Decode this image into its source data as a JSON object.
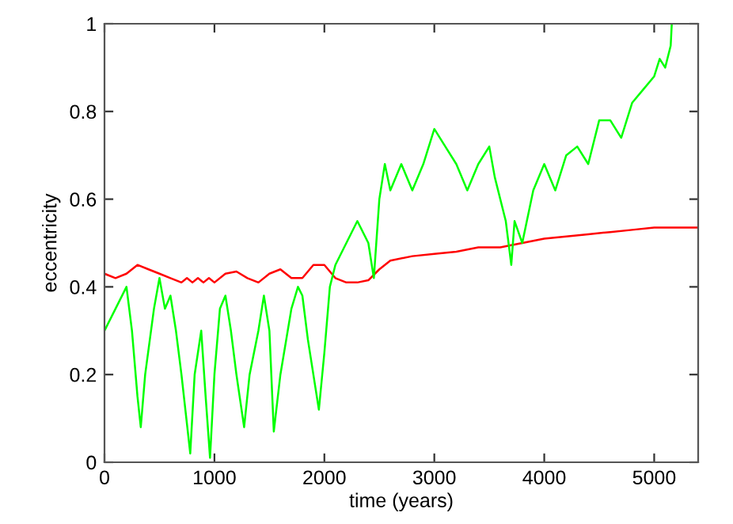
{
  "chart_data": {
    "type": "line",
    "xlabel": "time (years)",
    "ylabel": "eccentricity",
    "xlim": [
      0,
      5400
    ],
    "xticks": [
      0,
      1000,
      2000,
      3000,
      4000,
      5000
    ],
    "ylim": [
      0,
      1
    ],
    "yticks": [
      0,
      0.2,
      0.4,
      0.6,
      0.8,
      1
    ],
    "grid": false,
    "legend": false,
    "series": [
      {
        "color": "#ff0000",
        "x": [
          0,
          100,
          200,
          300,
          400,
          500,
          600,
          700,
          750,
          800,
          850,
          900,
          950,
          1000,
          1100,
          1200,
          1300,
          1400,
          1500,
          1600,
          1700,
          1800,
          1900,
          2000,
          2100,
          2200,
          2300,
          2400,
          2500,
          2600,
          2800,
          3000,
          3200,
          3400,
          3600,
          3800,
          4000,
          4200,
          4400,
          4600,
          4800,
          5000,
          5400
        ],
        "values": [
          0.43,
          0.42,
          0.43,
          0.45,
          0.44,
          0.43,
          0.42,
          0.41,
          0.42,
          0.41,
          0.42,
          0.41,
          0.42,
          0.41,
          0.43,
          0.435,
          0.42,
          0.41,
          0.43,
          0.44,
          0.42,
          0.42,
          0.45,
          0.45,
          0.42,
          0.41,
          0.41,
          0.415,
          0.44,
          0.46,
          0.47,
          0.475,
          0.48,
          0.49,
          0.49,
          0.5,
          0.51,
          0.515,
          0.52,
          0.525,
          0.53,
          0.535,
          0.535
        ]
      },
      {
        "color": "#00ff00",
        "x": [
          0,
          100,
          200,
          250,
          300,
          330,
          370,
          450,
          500,
          550,
          600,
          650,
          700,
          780,
          820,
          880,
          920,
          960,
          1000,
          1050,
          1100,
          1150,
          1200,
          1270,
          1320,
          1400,
          1450,
          1500,
          1540,
          1600,
          1700,
          1760,
          1800,
          1850,
          1950,
          2000,
          2050,
          2100,
          2200,
          2300,
          2400,
          2450,
          2500,
          2550,
          2600,
          2700,
          2800,
          2900,
          3000,
          3100,
          3200,
          3300,
          3400,
          3500,
          3550,
          3650,
          3700,
          3730,
          3800,
          3900,
          4000,
          4100,
          4200,
          4300,
          4400,
          4500,
          4600,
          4700,
          4800,
          4900,
          5000,
          5050,
          5100,
          5150,
          5160
        ],
        "values": [
          0.3,
          0.35,
          0.4,
          0.3,
          0.15,
          0.08,
          0.2,
          0.35,
          0.42,
          0.35,
          0.38,
          0.3,
          0.2,
          0.02,
          0.2,
          0.3,
          0.15,
          0.01,
          0.2,
          0.35,
          0.38,
          0.3,
          0.2,
          0.08,
          0.2,
          0.3,
          0.38,
          0.3,
          0.07,
          0.2,
          0.35,
          0.4,
          0.38,
          0.28,
          0.12,
          0.25,
          0.4,
          0.45,
          0.5,
          0.55,
          0.5,
          0.42,
          0.6,
          0.68,
          0.62,
          0.68,
          0.62,
          0.68,
          0.76,
          0.72,
          0.68,
          0.62,
          0.68,
          0.72,
          0.65,
          0.55,
          0.45,
          0.55,
          0.5,
          0.62,
          0.68,
          0.62,
          0.7,
          0.72,
          0.68,
          0.78,
          0.78,
          0.74,
          0.82,
          0.85,
          0.88,
          0.92,
          0.9,
          0.95,
          1.0
        ]
      }
    ]
  }
}
